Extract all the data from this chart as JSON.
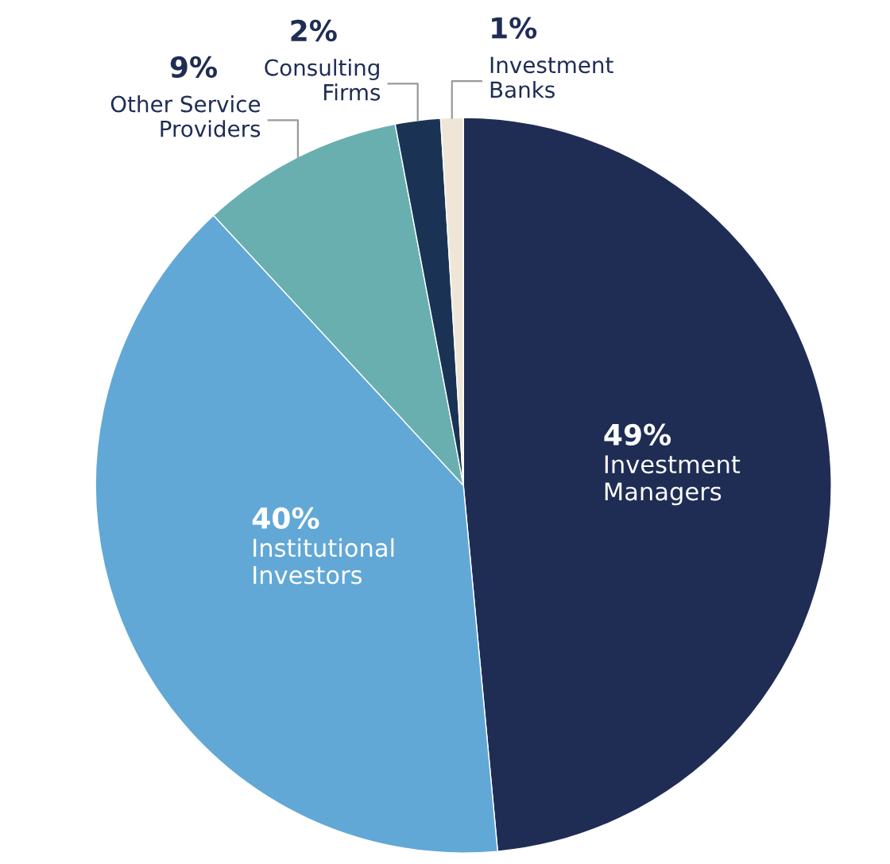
{
  "chart_data": {
    "type": "pie",
    "categories": [
      "Investment\nManagers",
      "Institutional\nInvestors",
      "Other Service\nProviders",
      "Consulting\nFirms",
      "Investment\nBanks"
    ],
    "values": [
      49,
      40,
      9,
      2,
      1
    ],
    "value_labels": [
      "49%",
      "40%",
      "9%",
      "2%",
      "1%"
    ],
    "colors": [
      "#1f2d55",
      "#62a8d6",
      "#6aafb0",
      "#1a3355",
      "#efe6d7"
    ],
    "legend": false
  }
}
